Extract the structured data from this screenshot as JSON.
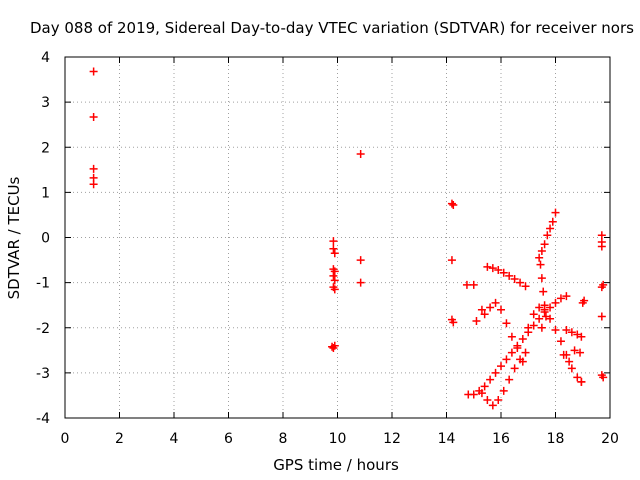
{
  "chart_data": {
    "type": "scatter",
    "title": "Day 088 of 2019, Sidereal Day-to-day VTEC variation (SDTVAR) for receiver nors",
    "xlabel": "GPS time / hours",
    "ylabel": "SDTVAR / TECUs",
    "xlim": [
      0,
      20
    ],
    "ylim": [
      -4,
      4
    ],
    "x_ticks": [
      0,
      2,
      4,
      6,
      8,
      10,
      12,
      14,
      16,
      18,
      20
    ],
    "y_ticks": [
      -4,
      -3,
      -2,
      -1,
      0,
      1,
      2,
      3,
      4
    ],
    "x_tick_labels": [
      "0",
      "2",
      "4",
      "6",
      "8",
      "10",
      "12",
      "14",
      "16",
      "18",
      "20"
    ],
    "y_tick_labels": [
      "-4",
      "-3",
      "-2",
      "-1",
      "0",
      "1",
      "2",
      "3",
      "4"
    ],
    "grid": true,
    "marker": "+",
    "color": "#ff0000",
    "series": [
      {
        "name": "scattered points",
        "points": [
          [
            1.05,
            3.68
          ],
          [
            1.05,
            2.67
          ],
          [
            1.05,
            1.52
          ],
          [
            1.05,
            1.32
          ],
          [
            1.05,
            1.18
          ],
          [
            9.85,
            -0.08
          ],
          [
            9.85,
            -0.25
          ],
          [
            9.9,
            -0.35
          ],
          [
            9.85,
            -0.7
          ],
          [
            9.9,
            -0.75
          ],
          [
            9.85,
            -0.85
          ],
          [
            9.9,
            -0.95
          ],
          [
            9.85,
            -1.1
          ],
          [
            9.9,
            -1.15
          ],
          [
            9.8,
            -2.42
          ],
          [
            9.85,
            -2.45
          ],
          [
            9.9,
            -2.4
          ],
          [
            10.85,
            1.85
          ],
          [
            10.85,
            -0.5
          ],
          [
            10.85,
            -1.0
          ],
          [
            14.2,
            0.75
          ],
          [
            14.25,
            0.72
          ],
          [
            14.2,
            -0.5
          ],
          [
            14.2,
            -1.82
          ],
          [
            14.25,
            -1.88
          ],
          [
            14.8,
            -3.48
          ],
          [
            14.75,
            -1.05
          ],
          [
            15.0,
            -1.05
          ],
          [
            19.7,
            0.05
          ],
          [
            19.7,
            -0.1
          ],
          [
            19.7,
            -0.2
          ],
          [
            19.75,
            -1.05
          ],
          [
            19.7,
            -1.1
          ],
          [
            19.7,
            -1.75
          ],
          [
            19.7,
            -3.05
          ],
          [
            19.75,
            -3.1
          ]
        ]
      },
      {
        "name": "track A (rising)",
        "points": [
          [
            15.0,
            -3.48
          ],
          [
            15.2,
            -3.4
          ],
          [
            15.4,
            -3.3
          ],
          [
            15.6,
            -3.15
          ],
          [
            15.8,
            -3.0
          ],
          [
            16.0,
            -2.85
          ],
          [
            16.2,
            -2.7
          ],
          [
            16.4,
            -2.55
          ],
          [
            16.6,
            -2.4
          ],
          [
            16.8,
            -2.25
          ],
          [
            17.0,
            -2.1
          ],
          [
            17.2,
            -1.95
          ],
          [
            17.4,
            -1.8
          ],
          [
            17.6,
            -1.65
          ],
          [
            17.8,
            -1.55
          ],
          [
            18.0,
            -1.45
          ],
          [
            18.2,
            -1.35
          ],
          [
            18.4,
            -1.3
          ]
        ]
      },
      {
        "name": "track B (falling)",
        "points": [
          [
            15.4,
            -1.7
          ],
          [
            15.6,
            -1.55
          ],
          [
            15.8,
            -1.45
          ],
          [
            16.0,
            -1.6
          ],
          [
            16.2,
            -1.9
          ],
          [
            16.4,
            -2.2
          ],
          [
            16.6,
            -2.45
          ],
          [
            16.8,
            -2.75
          ],
          [
            17.0,
            -2.0
          ],
          [
            17.2,
            -1.7
          ],
          [
            17.4,
            -1.55
          ],
          [
            17.6,
            -1.6
          ],
          [
            17.8,
            -1.8
          ],
          [
            18.0,
            -2.05
          ],
          [
            18.2,
            -2.3
          ],
          [
            18.4,
            -2.6
          ],
          [
            18.6,
            -2.9
          ],
          [
            18.8,
            -3.1
          ],
          [
            18.95,
            -3.2
          ]
        ]
      },
      {
        "name": "track C (deep dip)",
        "points": [
          [
            15.3,
            -3.45
          ],
          [
            15.5,
            -3.6
          ],
          [
            15.7,
            -3.72
          ],
          [
            15.9,
            -3.6
          ],
          [
            16.1,
            -3.4
          ],
          [
            16.3,
            -3.15
          ],
          [
            16.5,
            -2.9
          ],
          [
            16.7,
            -2.7
          ],
          [
            16.9,
            -2.55
          ]
        ]
      },
      {
        "name": "track D (upper arc)",
        "points": [
          [
            15.1,
            -1.85
          ],
          [
            15.3,
            -1.6
          ],
          [
            15.5,
            -0.65
          ],
          [
            15.7,
            -0.68
          ],
          [
            15.9,
            -0.72
          ],
          [
            16.1,
            -0.78
          ],
          [
            16.3,
            -0.85
          ],
          [
            16.5,
            -0.92
          ],
          [
            16.7,
            -1.0
          ],
          [
            16.9,
            -1.08
          ]
        ]
      },
      {
        "name": "track E (climb)",
        "points": [
          [
            17.4,
            -0.45
          ],
          [
            17.5,
            -0.3
          ],
          [
            17.6,
            -0.15
          ],
          [
            17.7,
            0.05
          ],
          [
            17.8,
            0.2
          ],
          [
            17.9,
            0.35
          ],
          [
            18.0,
            0.55
          ],
          [
            17.45,
            -0.6
          ],
          [
            17.5,
            -0.9
          ],
          [
            17.55,
            -1.2
          ],
          [
            17.6,
            -1.5
          ],
          [
            17.65,
            -1.75
          ],
          [
            17.5,
            -2.0
          ]
        ]
      },
      {
        "name": "track F (right cluster)",
        "points": [
          [
            18.4,
            -2.05
          ],
          [
            18.6,
            -2.1
          ],
          [
            18.8,
            -2.15
          ],
          [
            18.95,
            -2.2
          ],
          [
            18.7,
            -2.5
          ],
          [
            18.9,
            -2.55
          ],
          [
            18.5,
            -2.75
          ],
          [
            19.0,
            -1.45
          ],
          [
            19.05,
            -1.4
          ],
          [
            18.95,
            -3.2
          ],
          [
            18.3,
            -2.6
          ]
        ]
      }
    ]
  }
}
